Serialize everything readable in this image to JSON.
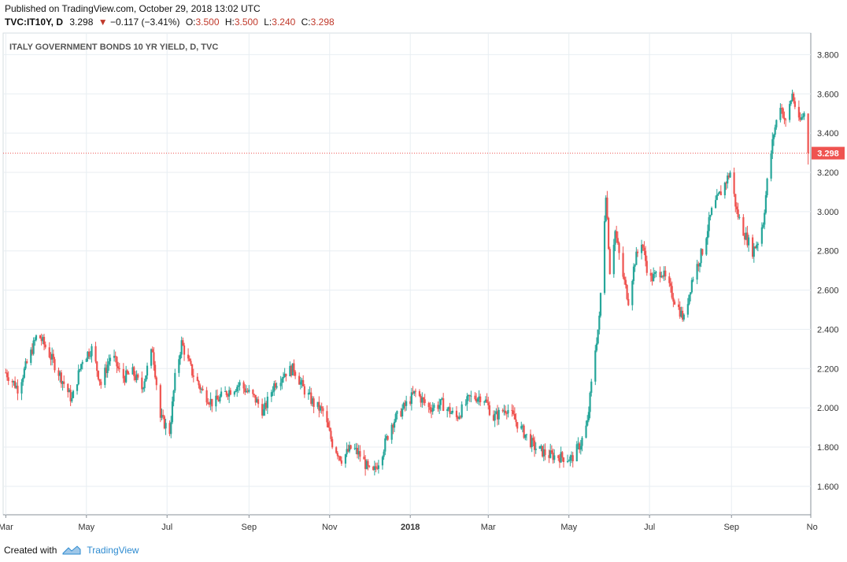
{
  "header": {
    "published": "Published on TradingView.com, October 29, 2018 13:02 UTC",
    "symbol": "TVC:IT10Y, D",
    "last": "3.298",
    "change": "−0.117 (−3.41%)",
    "o_label": "O:",
    "o_value": "3.500",
    "h_label": "H:",
    "h_value": "3.500",
    "l_label": "L:",
    "l_value": "3.240",
    "c_label": "C:",
    "c_value": "3.298"
  },
  "footer": {
    "created_with": "Created with",
    "brand": "TradingView"
  },
  "colors": {
    "up": "#26a69a",
    "down": "#ef5350",
    "grid": "#e8eef2",
    "price_line": "#ef5350",
    "axis_text": "#333333"
  },
  "chart_data": {
    "type": "candlestick",
    "title": "ITALY GOVERNMENT BONDS 10 YR YIELD, D, TVC",
    "x_ticks": [
      "Mar",
      "May",
      "Jul",
      "Sep",
      "Nov",
      "2018",
      "Mar",
      "May",
      "Jul",
      "Sep",
      "No"
    ],
    "y_ticks": [
      "1.600",
      "1.800",
      "2.000",
      "2.200",
      "2.400",
      "2.600",
      "2.800",
      "3.000",
      "3.200",
      "3.400",
      "3.600",
      "3.800"
    ],
    "ylim": [
      1.455,
      3.91
    ],
    "last_price_label": "3.298",
    "last_price": 3.298,
    "grid": true,
    "x_range": [
      "2017-02-27",
      "2018-10-31"
    ],
    "series": [
      {
        "date": "2017-03-01",
        "close": 2.18
      },
      {
        "date": "2017-03-10",
        "close": 2.1
      },
      {
        "date": "2017-03-20",
        "close": 2.28
      },
      {
        "date": "2017-03-25",
        "close": 2.38
      },
      {
        "date": "2017-04-01",
        "close": 2.3
      },
      {
        "date": "2017-04-10",
        "close": 2.18
      },
      {
        "date": "2017-04-20",
        "close": 2.04
      },
      {
        "date": "2017-04-28",
        "close": 2.25
      },
      {
        "date": "2017-05-05",
        "close": 2.3
      },
      {
        "date": "2017-05-12",
        "close": 2.12
      },
      {
        "date": "2017-05-20",
        "close": 2.28
      },
      {
        "date": "2017-05-28",
        "close": 2.15
      },
      {
        "date": "2017-06-05",
        "close": 2.18
      },
      {
        "date": "2017-06-12",
        "close": 2.1
      },
      {
        "date": "2017-06-20",
        "close": 2.3
      },
      {
        "date": "2017-06-26",
        "close": 1.95
      },
      {
        "date": "2017-07-03",
        "close": 1.88
      },
      {
        "date": "2017-07-07",
        "close": 2.15
      },
      {
        "date": "2017-07-12",
        "close": 2.33
      },
      {
        "date": "2017-07-20",
        "close": 2.18
      },
      {
        "date": "2017-07-28",
        "close": 2.08
      },
      {
        "date": "2017-08-05",
        "close": 2.02
      },
      {
        "date": "2017-08-15",
        "close": 2.08
      },
      {
        "date": "2017-08-25",
        "close": 2.12
      },
      {
        "date": "2017-09-05",
        "close": 2.05
      },
      {
        "date": "2017-09-12",
        "close": 1.98
      },
      {
        "date": "2017-09-20",
        "close": 2.12
      },
      {
        "date": "2017-09-28",
        "close": 2.18
      },
      {
        "date": "2017-10-05",
        "close": 2.2
      },
      {
        "date": "2017-10-12",
        "close": 2.1
      },
      {
        "date": "2017-10-20",
        "close": 2.02
      },
      {
        "date": "2017-10-27",
        "close": 1.98
      },
      {
        "date": "2017-11-03",
        "close": 1.82
      },
      {
        "date": "2017-11-10",
        "close": 1.74
      },
      {
        "date": "2017-11-18",
        "close": 1.8
      },
      {
        "date": "2017-11-25",
        "close": 1.75
      },
      {
        "date": "2017-12-03",
        "close": 1.65
      },
      {
        "date": "2017-12-10",
        "close": 1.76
      },
      {
        "date": "2017-12-18",
        "close": 1.92
      },
      {
        "date": "2017-12-27",
        "close": 2.0
      },
      {
        "date": "2018-01-05",
        "close": 2.08
      },
      {
        "date": "2018-01-15",
        "close": 2.0
      },
      {
        "date": "2018-01-25",
        "close": 2.02
      },
      {
        "date": "2018-02-05",
        "close": 1.95
      },
      {
        "date": "2018-02-15",
        "close": 2.05
      },
      {
        "date": "2018-02-25",
        "close": 2.06
      },
      {
        "date": "2018-03-05",
        "close": 1.95
      },
      {
        "date": "2018-03-15",
        "close": 2.0
      },
      {
        "date": "2018-03-25",
        "close": 1.9
      },
      {
        "date": "2018-04-05",
        "close": 1.8
      },
      {
        "date": "2018-04-15",
        "close": 1.76
      },
      {
        "date": "2018-04-25",
        "close": 1.75
      },
      {
        "date": "2018-05-03",
        "close": 1.74
      },
      {
        "date": "2018-05-10",
        "close": 1.82
      },
      {
        "date": "2018-05-15",
        "close": 1.92
      },
      {
        "date": "2018-05-20",
        "close": 2.25
      },
      {
        "date": "2018-05-24",
        "close": 2.45
      },
      {
        "date": "2018-05-29",
        "close": 3.1
      },
      {
        "date": "2018-06-01",
        "close": 2.7
      },
      {
        "date": "2018-06-05",
        "close": 2.9
      },
      {
        "date": "2018-06-10",
        "close": 2.7
      },
      {
        "date": "2018-06-15",
        "close": 2.55
      },
      {
        "date": "2018-06-20",
        "close": 2.75
      },
      {
        "date": "2018-06-25",
        "close": 2.85
      },
      {
        "date": "2018-07-01",
        "close": 2.65
      },
      {
        "date": "2018-07-10",
        "close": 2.7
      },
      {
        "date": "2018-07-20",
        "close": 2.55
      },
      {
        "date": "2018-07-27",
        "close": 2.45
      },
      {
        "date": "2018-08-02",
        "close": 2.65
      },
      {
        "date": "2018-08-10",
        "close": 2.8
      },
      {
        "date": "2018-08-17",
        "close": 3.0
      },
      {
        "date": "2018-08-24",
        "close": 3.1
      },
      {
        "date": "2018-08-31",
        "close": 3.2
      },
      {
        "date": "2018-09-05",
        "close": 3.0
      },
      {
        "date": "2018-09-10",
        "close": 2.9
      },
      {
        "date": "2018-09-17",
        "close": 2.8
      },
      {
        "date": "2018-09-21",
        "close": 2.85
      },
      {
        "date": "2018-09-25",
        "close": 2.95
      },
      {
        "date": "2018-09-28",
        "close": 3.15
      },
      {
        "date": "2018-10-03",
        "close": 3.4
      },
      {
        "date": "2018-10-08",
        "close": 3.55
      },
      {
        "date": "2018-10-12",
        "close": 3.45
      },
      {
        "date": "2018-10-17",
        "close": 3.6
      },
      {
        "date": "2018-10-22",
        "close": 3.45
      },
      {
        "date": "2018-10-26",
        "close": 3.5
      },
      {
        "date": "2018-10-29",
        "close": 3.298
      }
    ]
  }
}
